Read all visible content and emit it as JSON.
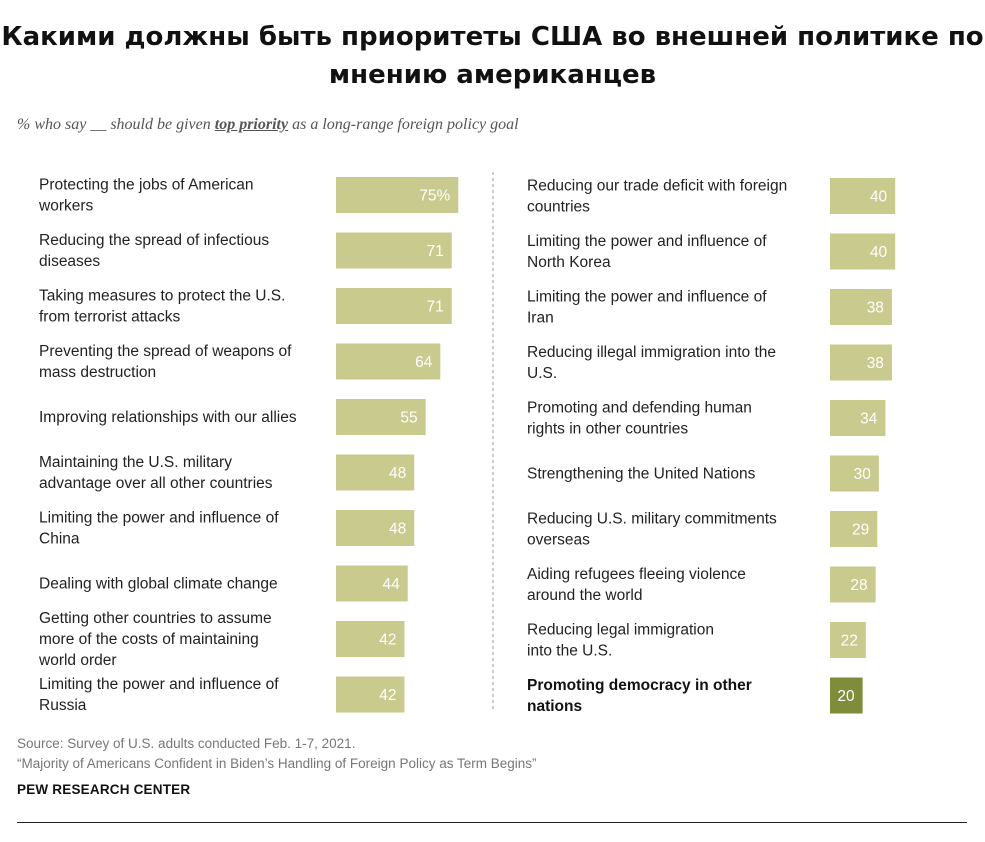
{
  "header": {
    "title": "Какими должны быть приоритеты США во внешней политике по мнению американцев",
    "subtitle_pre": "% who say __ should be given ",
    "subtitle_em": "top priority",
    "subtitle_post": " as a long-range foreign policy goal"
  },
  "footer": {
    "source": "Source: Survey of U.S. adults conducted Feb. 1-7, 2021.",
    "report": "“Majority of Americans Confident in Biden’s Handling of Foreign Policy as Term Begins”",
    "org": "PEW RESEARCH CENTER"
  },
  "colors": {
    "bar": "#c8ca8e",
    "highlight": "#7f8c3a"
  },
  "chart_data": [
    {
      "type": "bar",
      "orientation": "horizontal",
      "title": "",
      "categories": [
        "Protecting the jobs of American workers",
        "Reducing the spread of infectious diseases",
        "Taking measures to protect the U.S. from terrorist attacks",
        "Preventing the spread of weapons of mass destruction",
        "Improving relationships with our allies",
        "Maintaining the U.S. military advantage over all other countries",
        "Limiting the power and influence of China",
        "Dealing with global climate change",
        "Getting other countries to assume more of the costs of maintaining world order",
        "Limiting the power and influence of Russia"
      ],
      "category_lines": [
        [
          "Protecting the jobs of American",
          "workers"
        ],
        [
          "Reducing the spread of infectious",
          "diseases"
        ],
        [
          "Taking measures to protect the U.S.",
          "from terrorist attacks"
        ],
        [
          "Preventing the spread of weapons of",
          "mass destruction"
        ],
        [
          "Improving relationships with our allies"
        ],
        [
          "Maintaining the U.S. military",
          "advantage over all other countries"
        ],
        [
          "Limiting the power and influence of",
          "China"
        ],
        [
          "Dealing with global climate change"
        ],
        [
          "Getting other countries to assume",
          "more of the costs of maintaining",
          "world order"
        ],
        [
          "Limiting the power and influence of",
          "Russia"
        ]
      ],
      "values": [
        75,
        71,
        71,
        64,
        55,
        48,
        48,
        44,
        42,
        42
      ],
      "value_labels": [
        "75%",
        "71",
        "71",
        "64",
        "55",
        "48",
        "48",
        "44",
        "42",
        "42"
      ],
      "highlight": [
        false,
        false,
        false,
        false,
        false,
        false,
        false,
        false,
        false,
        false
      ]
    },
    {
      "type": "bar",
      "orientation": "horizontal",
      "title": "",
      "categories": [
        "Reducing our trade deficit with foreign countries",
        "Limiting the power and influence of North Korea",
        "Limiting the power and influence of Iran",
        "Reducing illegal immigration into the U.S.",
        "Promoting and defending human rights in other countries",
        "Strengthening the United Nations",
        "Reducing U.S. military commitments overseas",
        "Aiding refugees fleeing violence around the world",
        "Reducing legal immigration into the U.S.",
        "Promoting democracy in other nations"
      ],
      "category_lines": [
        [
          "Reducing our trade deficit with foreign",
          "countries"
        ],
        [
          "Limiting the power and influence of",
          "North Korea"
        ],
        [
          "Limiting the power and influence of",
          "Iran"
        ],
        [
          "Reducing illegal immigration into the",
          "U.S."
        ],
        [
          "Promoting and defending human",
          "rights in other countries"
        ],
        [
          "Strengthening the United Nations"
        ],
        [
          "Reducing U.S. military commitments",
          "overseas"
        ],
        [
          "Aiding refugees fleeing violence",
          "around the world"
        ],
        [
          "Reducing legal immigration",
          "into the U.S."
        ],
        [
          "Promoting democracy in other",
          "nations"
        ]
      ],
      "values": [
        40,
        40,
        38,
        38,
        34,
        30,
        29,
        28,
        22,
        20
      ],
      "value_labels": [
        "40",
        "40",
        "38",
        "38",
        "34",
        "30",
        "29",
        "28",
        "22",
        "20"
      ],
      "highlight": [
        false,
        false,
        false,
        false,
        false,
        false,
        false,
        false,
        false,
        true
      ]
    }
  ]
}
